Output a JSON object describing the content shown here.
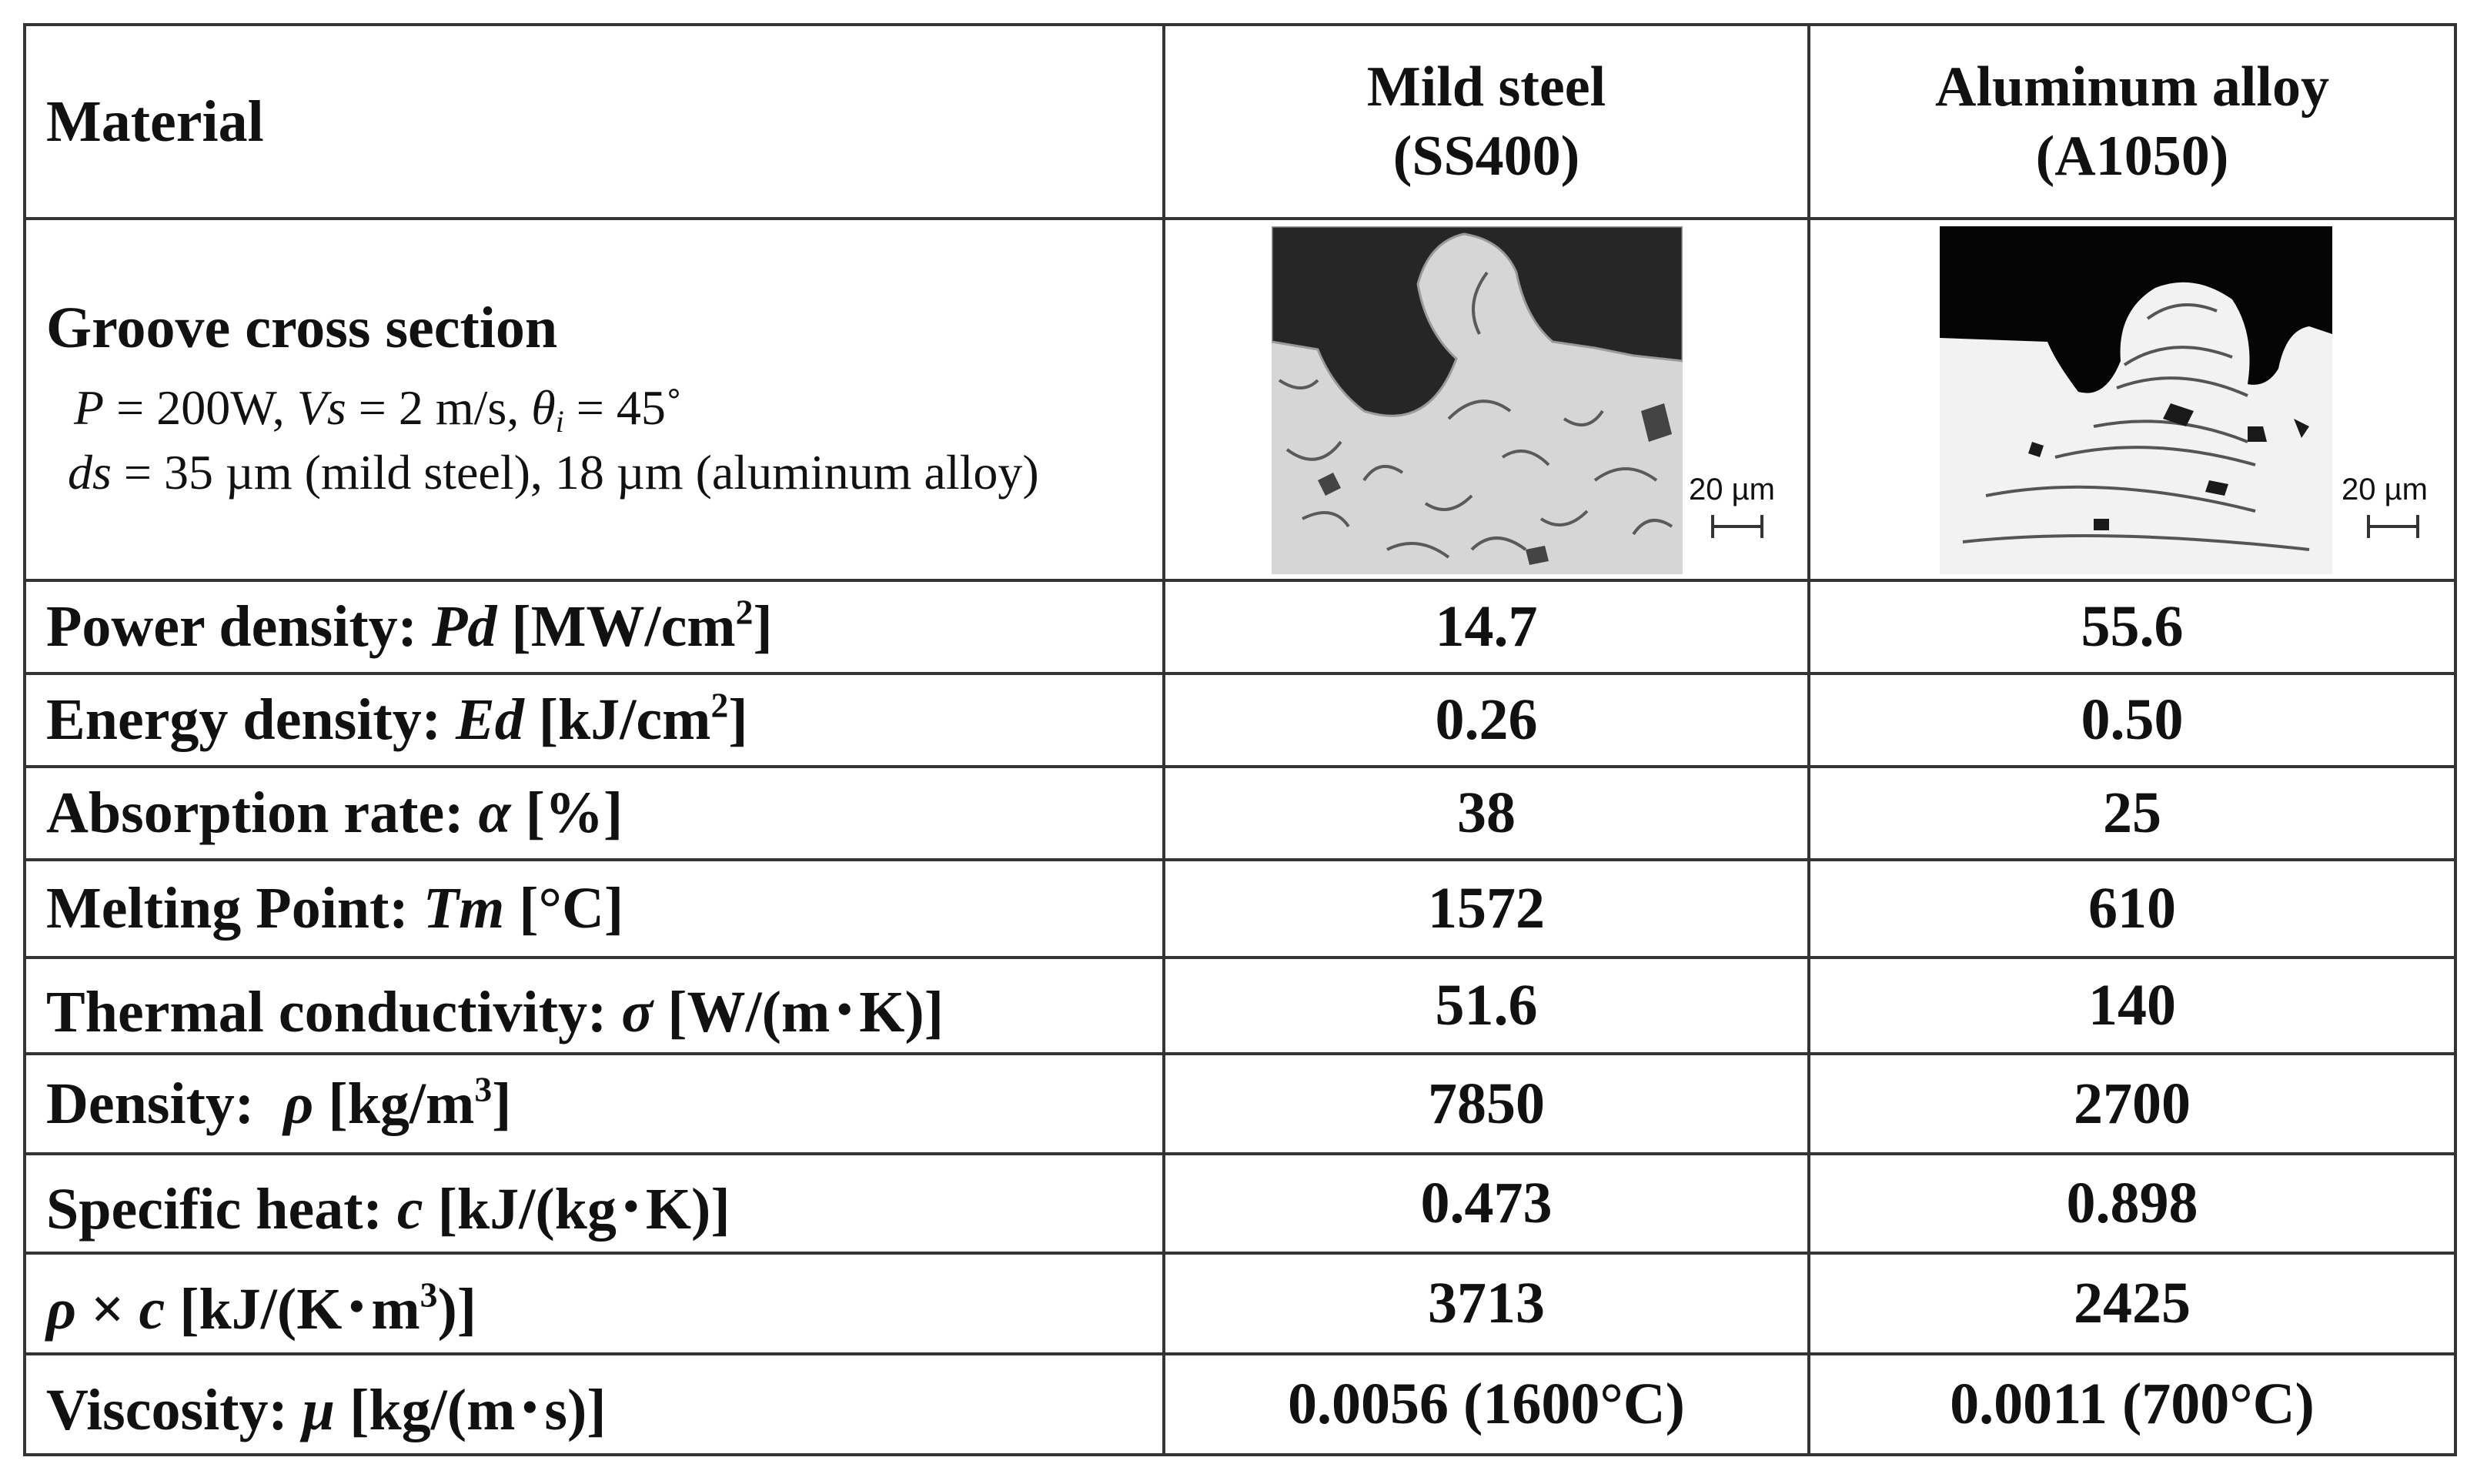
{
  "header": {
    "material_label": "Material",
    "col1_line1": "Mild steel",
    "col1_line2": "(SS400)",
    "col2_line1": "Aluminum alloy",
    "col2_line2": "(A1050)"
  },
  "groove": {
    "title": "Groove cross section",
    "params_P": "P",
    "params_P_val": " = 200W, ",
    "params_Vs": "Vs",
    "params_Vs_val": " = 2 m/s, ",
    "params_theta": "θ",
    "params_theta_sub": "i",
    "params_theta_val": " = 45˚",
    "ds": "ds",
    "ds_val": " = 35 µm (mild steel), 18 µm (aluminum alloy)",
    "scale_steel": "20 µm",
    "scale_alu": "20 µm"
  },
  "rows": {
    "power": {
      "label": "Power density: ",
      "sym": "Pd",
      "unit": " [MW/cm",
      "unit_sup": "2",
      "unit_end": "]",
      "steel": "14.7",
      "alu": "55.6"
    },
    "energy": {
      "label": "Energy density: ",
      "sym": "Ed",
      "unit": " [kJ/cm",
      "unit_sup": "2",
      "unit_end": "]",
      "steel": "0.26",
      "alu": "0.50"
    },
    "absorption": {
      "label": "Absorption rate: ",
      "sym": "α",
      "unit": " [%]",
      "steel": "38",
      "alu": "25"
    },
    "melting": {
      "label": "Melting Point: ",
      "sym": "Tm",
      "unit": " [°C]",
      "steel": "1572",
      "alu": "610"
    },
    "conductivity": {
      "label": "Thermal conductivity: ",
      "sym": "σ",
      "unit": " [W/(m･K)]",
      "steel": "51.6",
      "alu": "140"
    },
    "density": {
      "label": "Density:  ",
      "sym": "ρ",
      "unit": " [kg/m",
      "unit_sup": "3",
      "unit_end": "]",
      "steel": "7850",
      "alu": "2700"
    },
    "specific_heat": {
      "label": "Specific heat: ",
      "sym": "c",
      "unit": " [kJ/(kg･K)]",
      "steel": "0.473",
      "alu": "0.898"
    },
    "rho_c": {
      "sym1": "ρ",
      "times": " × ",
      "sym2": "c",
      "unit": " [kJ/(K･m",
      "unit_sup": "3",
      "unit_end": ")]",
      "steel": "3713",
      "alu": "2425"
    },
    "viscosity": {
      "label": "Viscosity: ",
      "sym": "μ",
      "unit": " [kg/(m･s)]",
      "steel": "0.0056 (1600°C)",
      "alu": "0.0011 (700°C)"
    }
  }
}
